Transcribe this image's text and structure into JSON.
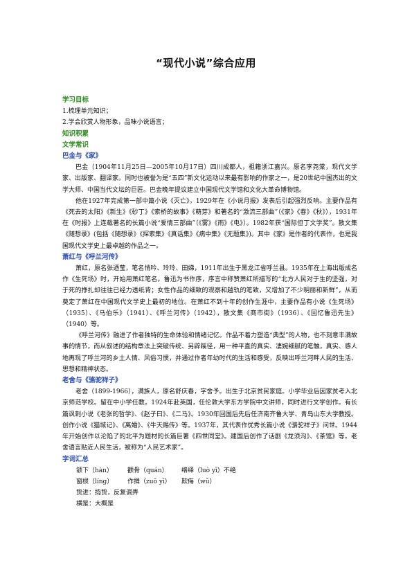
{
  "title": "“现代小说”综合应用",
  "goals": {
    "heading": "学习目标",
    "items": [
      "1.梳理单元知识；",
      "2.学会欣赏人物形象，品味小说语言；"
    ]
  },
  "knowledge_heading": "知识积累",
  "literature_heading": "文学常识",
  "authors": [
    {
      "heading": "巴金与《家》",
      "paragraphs": [
        "巴金（1904年11月25日—2005年10月17日）四川成都人，祖籍浙江嘉兴。原名李尧棠，现代文学家、出版家、翻译家。同时也被誉为是“五四”新文化运动以来最有影响的作家之一，是20世纪中国杰出的文学大师、中国当代文坛的巨匠。巴金晚年提议建立中国现代文学馆和文化大革命博物馆。",
        "他在1927年完成第一部中篇小说《灭亡》，1929年在《小说月报》发表后引起强烈反响。主要作品有《死去的太阳》《新生》《砂丁》《索桥的故事》《萌芽》和著名的“激流三部曲”（《家》《春》《秋》），1931年在《时报》上连载著名的长篇小说“爱情三部曲”（《雾》《雨》《电》）。1982年获“国际但丁文学奖”。散文集《随想录》(包括《随想录》《探索集》《真话集》《病中集》《无题集》)。其中《家》是作者的代表作，也是我国现代文学史上最卓越的作品之一。"
      ]
    },
    {
      "heading": "萧红与《呼兰河传》",
      "paragraphs": [
        "萧红，原名张迺莹，笔名悄吟、玲玲、田娣，1911年出生于黑龙江省呼兰县。1935年在上海出版成名作《生死场》时，开始用萧红笔名。鲁迅为书作序，序言中称赞萧红所描写的“北方人民对于生的坚强，对于死的挣扎却往往已经力透纸背；女性作品的细致的观察和越轨的笔致，又增加了不少明丽和新鲜”，从而奠定了萧红在中国现代文学史上最初的地位。在萧红不到十年的创作生涯中，主要作品有小说《生死场》（1935）、《马伯乐》（1941）、《呼兰河传》（1942），散文集《商市街》（1936）、《回忆鲁迅先生》（1940）等。",
        "《呼兰河传》融进了作者独特的生命体验和情绪记忆。作品不着力塑造“典型”的人物，也不刻意丰满故事的情节，而从叙述的结构章法上突破传统、另辟蹊径，用一种平直的真实、凄婉细腻的笔触，真实、感人地再现了呼兰河的乡土人情、风俗习惯，并通过作者年幼时代的生活和感受，反映出呼兰河畔人民的生活、思想和精神状态。"
      ]
    },
    {
      "heading": "老舍与《骆驼祥子》",
      "paragraphs": [
        "老舍（1899-1966），满族人，原名舒庆春，字舍予。出生于北京贫民家庭。小学毕业后因家贫考入北京师范学校。留在中小学任教。1924年赴英国，任伦敦大学东方学院中文讲师，同时进行文学创作。有长篇讽刺小说《老张的哲学》、《赵子曰》、《二马》。1930年回国后先后任济南齐鲁大学、青岛山东大学教授。创作小说《猫城记》、《离婚》、《牛天赐传》等。1937年，其代表作优秀长篇小说《骆驼祥子》问世。1944年开始创作以沦陷了的北平为题材的长篇巨著《四世同堂》。建国后创作了话剧《龙须沟》、《茶馆》等。老舍语言贴近人民生活，被称为“人民艺术家”。"
      ]
    }
  ],
  "vocab": {
    "heading": "字词汇总",
    "rows": [
      [
        "颔下（hàn）",
        "颧骨（quán）",
        "络绎（luò yì）不绝"
      ],
      [
        "窗棂（líng）",
        "作揖（zuō yī）",
        "欺侮（wǔ）"
      ]
    ],
    "definitions": [
      "贽进：捣贽，反复调弄",
      "横是：大概是"
    ]
  }
}
